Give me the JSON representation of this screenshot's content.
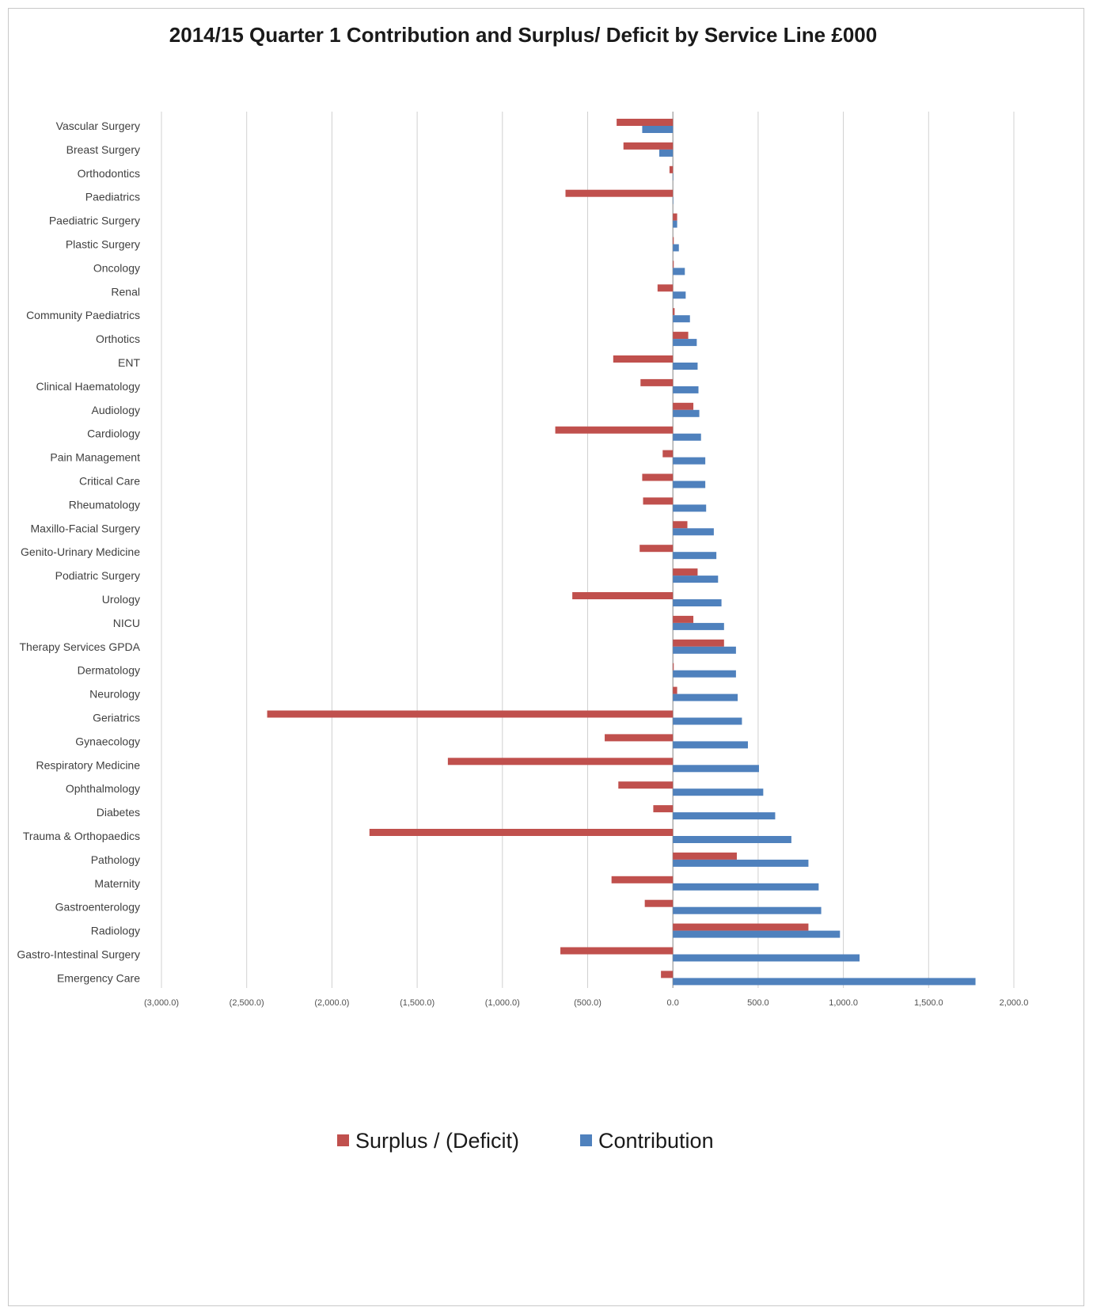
{
  "chart_data": {
    "type": "bar",
    "orientation": "horizontal",
    "title": "2014/15 Quarter 1 Contribution  and Surplus/ Deficit by Service Line £000",
    "xlabel": "",
    "ylabel": "",
    "xlim": [
      -3000,
      2000
    ],
    "x_ticks": [
      -3000,
      -2500,
      -2000,
      -1500,
      -1000,
      -500,
      0,
      500,
      1000,
      1500,
      2000
    ],
    "x_tick_labels": [
      "(3,000.0)",
      "(2,500.0)",
      "(2,000.0)",
      "(1,500.0)",
      "(1,000.0)",
      "(500.0)",
      "0.0",
      "500.0",
      "1,000.0",
      "1,500.0",
      "2,000.0"
    ],
    "grid": "vertical",
    "legend_position": "bottom",
    "categories": [
      "Vascular Surgery",
      "Breast Surgery",
      "Orthodontics",
      "Paediatrics",
      "Paediatric Surgery",
      "Plastic Surgery",
      "Oncology",
      "Renal",
      "Community Paediatrics",
      "Orthotics",
      "ENT",
      "Clinical Haematology",
      "Audiology",
      "Cardiology",
      "Pain Management",
      "Critical Care",
      "Rheumatology",
      "Maxillo-Facial Surgery",
      "Genito-Urinary Medicine",
      "Podiatric Surgery",
      "Urology",
      "NICU",
      "Therapy Services GPDA",
      "Dermatology",
      "Neurology",
      "Geriatrics",
      "Gynaecology",
      "Respiratory Medicine",
      "Ophthalmology",
      "Diabetes",
      "Trauma & Orthopaedics",
      "Pathology",
      "Maternity",
      "Gastroenterology",
      "Radiology",
      "Gastro-Intestinal Surgery",
      "Emergency Care"
    ],
    "series": [
      {
        "name": "Surplus / (Deficit)",
        "color": "#c0504d",
        "values": [
          -330,
          -290,
          -20,
          -630,
          25,
          5,
          5,
          -90,
          10,
          90,
          -350,
          -190,
          120,
          -690,
          -60,
          -180,
          -175,
          85,
          -195,
          145,
          -590,
          120,
          300,
          5,
          25,
          -2380,
          -400,
          -1320,
          -320,
          -115,
          -1780,
          375,
          -360,
          -165,
          795,
          -660,
          -70
        ]
      },
      {
        "name": "Contribution",
        "color": "#4f81bd",
        "values": [
          -180,
          -80,
          0,
          0,
          25,
          35,
          70,
          75,
          100,
          140,
          145,
          150,
          155,
          165,
          190,
          190,
          195,
          240,
          255,
          265,
          285,
          300,
          370,
          370,
          380,
          405,
          440,
          505,
          530,
          600,
          695,
          795,
          855,
          870,
          980,
          1095,
          1775
        ]
      }
    ]
  }
}
